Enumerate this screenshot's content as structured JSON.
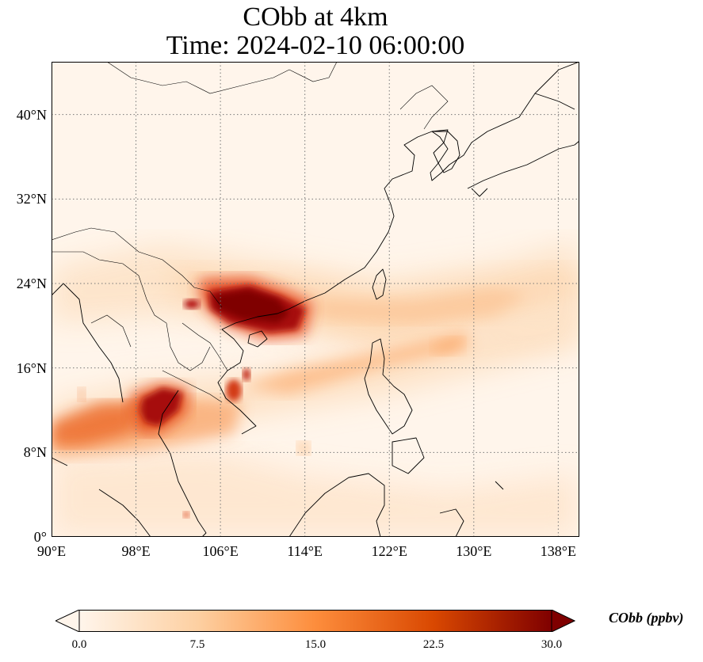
{
  "title": {
    "line1": "CObb at 4km",
    "line2": "Time: 2024-02-10 06:00:00"
  },
  "map": {
    "lon_range": [
      90,
      140
    ],
    "lat_range": [
      0,
      45
    ],
    "lon_ticks": [
      {
        "value": 90,
        "label": "90°E"
      },
      {
        "value": 98,
        "label": "98°E"
      },
      {
        "value": 106,
        "label": "106°E"
      },
      {
        "value": 114,
        "label": "114°E"
      },
      {
        "value": 122,
        "label": "122°E"
      },
      {
        "value": 130,
        "label": "130°E"
      },
      {
        "value": 138,
        "label": "138°E"
      }
    ],
    "lat_ticks": [
      {
        "value": 0,
        "label": "0°"
      },
      {
        "value": 8,
        "label": "8°N"
      },
      {
        "value": 16,
        "label": "16°N"
      },
      {
        "value": 24,
        "label": "24°N"
      },
      {
        "value": 32,
        "label": "32°N"
      },
      {
        "value": 40,
        "label": "40°N"
      }
    ],
    "gridlines": true,
    "colormap_colors": [
      "#fff5eb",
      "#fdd0a2",
      "#fd8d3c",
      "#d94801",
      "#7f0000"
    ]
  },
  "colorbar": {
    "label": "CObb (ppbv)",
    "min": 0,
    "max": 30,
    "ticks": [
      "0.0",
      "7.5",
      "15.0",
      "22.5",
      "30.0"
    ],
    "extend": "both"
  }
}
